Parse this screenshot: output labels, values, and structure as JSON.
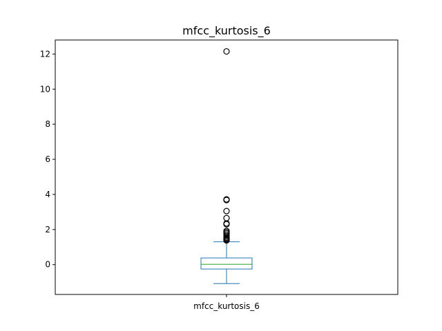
{
  "chart_data": {
    "type": "box",
    "title": "mfcc_kurtosis_6",
    "xlabel": "",
    "ylabel": "",
    "categories": [
      "mfcc_kurtosis_6"
    ],
    "ylim": [
      -1.7,
      12.8
    ],
    "yticks": [
      0,
      2,
      4,
      6,
      8,
      10,
      12
    ],
    "grid": false,
    "box": {
      "whisker_low": -1.08,
      "q1": -0.25,
      "median": 0.02,
      "q3": 0.38,
      "whisker_high": 1.3
    },
    "outliers": [
      1.38,
      1.42,
      1.45,
      1.5,
      1.55,
      1.62,
      1.7,
      1.78,
      1.85,
      1.92,
      2.3,
      2.35,
      2.65,
      3.05,
      3.68,
      3.72,
      12.15
    ],
    "colors": {
      "box": "#1f77b4",
      "median": "#2ca02c",
      "outlier": "#000000",
      "axes": "#000000"
    }
  }
}
